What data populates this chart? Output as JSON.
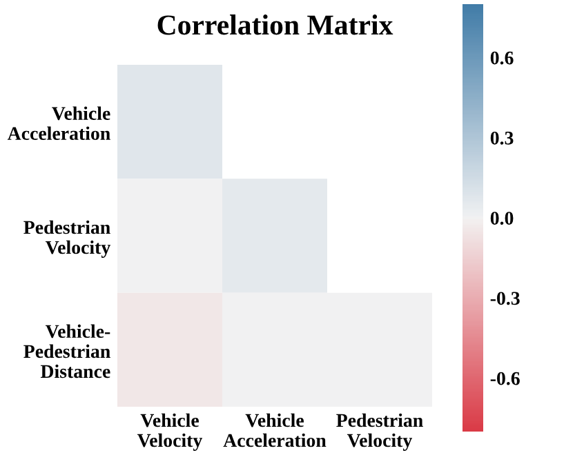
{
  "chart_data": {
    "type": "heatmap",
    "title": "Correlation Matrix",
    "categories": [
      "Vehicle\nVelocity",
      "Vehicle\nAcceleration",
      "Pedestrian\nVelocity"
    ],
    "y_categories": [
      "Vehicle\nAcceleration",
      "Pedestrian\nVelocity",
      "Vehicle-\nPedestrian\nDistance"
    ],
    "cells": [
      [
        0.08,
        null,
        null
      ],
      [
        0.0,
        0.06,
        null
      ],
      [
        -0.05,
        0.0,
        0.0
      ]
    ],
    "clim": [
      -0.8,
      0.8
    ],
    "cticks": [
      -0.6,
      -0.3,
      {
        "value": 0,
        "label": "0.0"
      },
      0.3,
      0.6
    ]
  }
}
